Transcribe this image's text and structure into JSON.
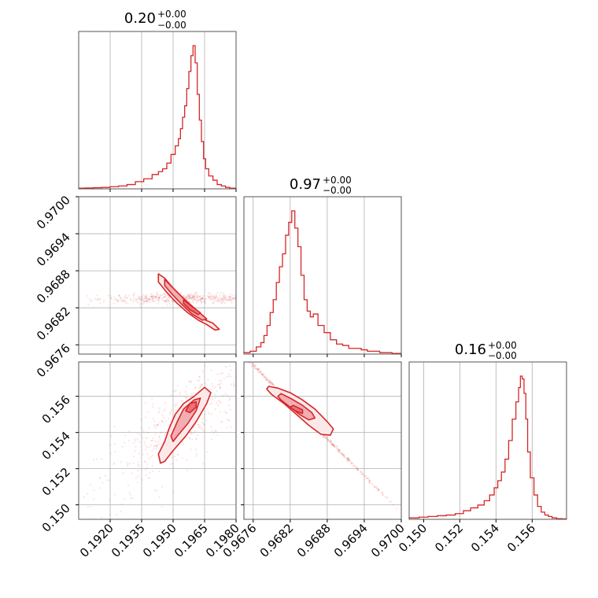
{
  "chart_data": {
    "type": "corner",
    "color": "#d62728",
    "grid": true,
    "params": [
      {
        "title_value": "0.20",
        "title_plus": "+0.00",
        "title_minus": "−0.00",
        "range": [
          0.1905,
          0.198
        ],
        "ticks": [
          0.192,
          0.1935,
          0.195,
          0.1965,
          0.198
        ],
        "tick_labels": [
          "0.1920",
          "0.1935",
          "0.1950",
          "0.1965",
          "0.1980"
        ]
      },
      {
        "title_value": "0.97",
        "title_plus": "+0.00",
        "title_minus": "−0.00",
        "range": [
          0.96745,
          0.97
        ],
        "ticks": [
          0.9676,
          0.9682,
          0.9688,
          0.9694,
          0.97
        ],
        "tick_labels": [
          "0.9676",
          "0.9682",
          "0.9688",
          "0.9694",
          "0.9700"
        ]
      },
      {
        "title_value": "0.16",
        "title_plus": "+0.00",
        "title_minus": "−0.00",
        "range": [
          0.1492,
          0.1579
        ],
        "ticks": [
          0.15,
          0.152,
          0.154,
          0.156
        ],
        "tick_labels": [
          "0.150",
          "0.152",
          "0.154",
          "0.156"
        ]
      }
    ],
    "histograms": [
      {
        "param": 0,
        "bin_centers": [
          0.1906,
          0.191,
          0.1914,
          0.1918,
          0.1922,
          0.1926,
          0.193,
          0.1934,
          0.1938,
          0.1942,
          0.1944,
          0.1946,
          0.1948,
          0.195,
          0.1952,
          0.1953,
          0.1954,
          0.1955,
          0.1956,
          0.1957,
          0.1958,
          0.1959,
          0.196,
          0.1961,
          0.1962,
          0.1963,
          0.1964,
          0.1965,
          0.1966,
          0.1968,
          0.197,
          0.1972,
          0.1974,
          0.1976,
          0.1978
        ],
        "counts": [
          0.005,
          0.006,
          0.008,
          0.01,
          0.015,
          0.02,
          0.03,
          0.05,
          0.07,
          0.1,
          0.12,
          0.14,
          0.18,
          0.24,
          0.3,
          0.35,
          0.42,
          0.5,
          0.58,
          0.7,
          0.82,
          0.93,
          1.0,
          0.88,
          0.66,
          0.48,
          0.33,
          0.21,
          0.14,
          0.09,
          0.06,
          0.03,
          0.02,
          0.01,
          0.005
        ]
      },
      {
        "param": 1,
        "bin_centers": [
          0.9675,
          0.9676,
          0.9677,
          0.96775,
          0.9678,
          0.96785,
          0.9679,
          0.96795,
          0.968,
          0.96805,
          0.9681,
          0.96815,
          0.9682,
          0.96825,
          0.9683,
          0.96835,
          0.9684,
          0.96845,
          0.9685,
          0.96855,
          0.9686,
          0.9687,
          0.9688,
          0.9689,
          0.969,
          0.9691,
          0.9692,
          0.9693,
          0.9694,
          0.9695,
          0.9696,
          0.9697,
          0.9698,
          0.9699
        ],
        "counts": [
          0.01,
          0.02,
          0.05,
          0.08,
          0.13,
          0.2,
          0.29,
          0.38,
          0.5,
          0.61,
          0.7,
          0.83,
          0.92,
          1.0,
          0.88,
          0.75,
          0.55,
          0.38,
          0.3,
          0.26,
          0.28,
          0.2,
          0.15,
          0.1,
          0.07,
          0.06,
          0.04,
          0.04,
          0.03,
          0.02,
          0.02,
          0.01,
          0.01,
          0.005
        ]
      },
      {
        "param": 2,
        "bin_centers": [
          0.1495,
          0.15,
          0.1505,
          0.151,
          0.1515,
          0.152,
          0.1524,
          0.1528,
          0.1532,
          0.1535,
          0.1538,
          0.154,
          0.1542,
          0.1544,
          0.1546,
          0.1548,
          0.155,
          0.1552,
          0.1553,
          0.1554,
          0.1555,
          0.1556,
          0.1557,
          0.1558,
          0.156,
          0.1562,
          0.1564,
          0.1566,
          0.1568,
          0.157,
          0.1572,
          0.1575,
          0.1578
        ],
        "counts": [
          0.01,
          0.015,
          0.02,
          0.025,
          0.03,
          0.04,
          0.06,
          0.08,
          0.1,
          0.13,
          0.17,
          0.22,
          0.27,
          0.33,
          0.42,
          0.55,
          0.7,
          0.82,
          0.92,
          1.0,
          0.98,
          0.88,
          0.7,
          0.47,
          0.29,
          0.17,
          0.09,
          0.05,
          0.03,
          0.02,
          0.01,
          0.005,
          0.003
        ]
      }
    ],
    "pairs": [
      {
        "x_param": 0,
        "y_param": 1,
        "levels": [
          {
            "fill": "#fbe9ea",
            "points": [
              [
                0.1943,
                0.96875
              ],
              [
                0.1946,
                0.96868
              ],
              [
                0.195,
                0.96852
              ],
              [
                0.1955,
                0.96835
              ],
              [
                0.196,
                0.96818
              ],
              [
                0.1964,
                0.96802
              ],
              [
                0.1969,
                0.96795
              ],
              [
                0.1972,
                0.96785
              ],
              [
                0.197,
                0.96784
              ],
              [
                0.1966,
                0.96793
              ],
              [
                0.1962,
                0.968
              ],
              [
                0.1957,
                0.96812
              ],
              [
                0.1952,
                0.96827
              ],
              [
                0.1947,
                0.96845
              ],
              [
                0.1943,
                0.96862
              ]
            ]
          },
          {
            "fill": "#f2aeb3",
            "points": [
              [
                0.1946,
                0.96866
              ],
              [
                0.195,
                0.96852
              ],
              [
                0.1955,
                0.96835
              ],
              [
                0.196,
                0.9682
              ],
              [
                0.1964,
                0.96808
              ],
              [
                0.1966,
                0.96802
              ],
              [
                0.1964,
                0.968
              ],
              [
                0.1959,
                0.9681
              ],
              [
                0.1954,
                0.96826
              ],
              [
                0.1949,
                0.96844
              ],
              [
                0.1946,
                0.96856
              ]
            ]
          },
          {
            "fill": "#e8717a",
            "points": [
              [
                0.1955,
                0.96833
              ],
              [
                0.1959,
                0.96822
              ],
              [
                0.1963,
                0.96812
              ],
              [
                0.1962,
                0.96809
              ],
              [
                0.1958,
                0.96817
              ],
              [
                0.1955,
                0.96827
              ]
            ]
          }
        ],
        "scatter_center": [
          0.1955,
          0.96835
        ],
        "scatter_direction": [
          1.0,
          -0.00027
        ],
        "scatter_spread": [
          0.002,
          4e-05
        ]
      },
      {
        "x_param": 0,
        "y_param": 2,
        "levels": [
          {
            "fill": "#fbe9ea",
            "points": [
              [
                0.1943,
                0.1528
              ],
              [
                0.1946,
                0.1535
              ],
              [
                0.1948,
                0.1542
              ],
              [
                0.1951,
                0.155
              ],
              [
                0.1955,
                0.1556
              ],
              [
                0.196,
                0.156
              ],
              [
                0.1965,
                0.1565
              ],
              [
                0.1968,
                0.1562
              ],
              [
                0.1966,
                0.1556
              ],
              [
                0.1961,
                0.1546
              ],
              [
                0.1956,
                0.1538
              ],
              [
                0.195,
                0.153
              ],
              [
                0.1946,
                0.1524
              ],
              [
                0.1944,
                0.1523
              ]
            ]
          },
          {
            "fill": "#f2aeb3",
            "points": [
              [
                0.1949,
                0.1538
              ],
              [
                0.1952,
                0.1546
              ],
              [
                0.1955,
                0.1553
              ],
              [
                0.196,
                0.1558
              ],
              [
                0.1963,
                0.1559
              ],
              [
                0.1961,
                0.1552
              ],
              [
                0.1957,
                0.1545
              ],
              [
                0.1952,
                0.1538
              ],
              [
                0.195,
                0.1535
              ]
            ]
          },
          {
            "fill": "#e8717a",
            "points": [
              [
                0.1956,
                0.1552
              ],
              [
                0.1958,
                0.1556
              ],
              [
                0.1961,
                0.1557
              ],
              [
                0.1961,
                0.1554
              ],
              [
                0.1958,
                0.1551
              ]
            ]
          }
        ],
        "scatter_center": [
          0.1954,
          0.1545
        ],
        "scatter_direction": [
          1.0,
          0.9
        ],
        "scatter_spread": [
          0.002,
          0.0012
        ]
      },
      {
        "x_param": 1,
        "y_param": 2,
        "levels": [
          {
            "fill": "#fbe9ea",
            "points": [
              [
                0.96785,
                0.15655
              ],
              [
                0.968,
                0.15645
              ],
              [
                0.9682,
                0.1562
              ],
              [
                0.9684,
                0.1558
              ],
              [
                0.9686,
                0.1553
              ],
              [
                0.9688,
                0.1546
              ],
              [
                0.9689,
                0.1542
              ],
              [
                0.96885,
                0.15385
              ],
              [
                0.9687,
                0.1539
              ],
              [
                0.9685,
                0.1544
              ],
              [
                0.9683,
                0.155
              ],
              [
                0.9681,
                0.1556
              ],
              [
                0.9679,
                0.1561
              ],
              [
                0.96782,
                0.1564
              ]
            ]
          },
          {
            "fill": "#f2aeb3",
            "points": [
              [
                0.96805,
                0.15615
              ],
              [
                0.9682,
                0.1559
              ],
              [
                0.9684,
                0.1555
              ],
              [
                0.96855,
                0.1551
              ],
              [
                0.9686,
                0.1548
              ],
              [
                0.9685,
                0.1547
              ],
              [
                0.96835,
                0.155
              ],
              [
                0.9682,
                0.1554
              ],
              [
                0.96805,
                0.1558
              ],
              [
                0.968,
                0.156
              ]
            ]
          },
          {
            "fill": "#e8717a",
            "points": [
              [
                0.96825,
                0.1555
              ],
              [
                0.9684,
                0.15525
              ],
              [
                0.9684,
                0.15505
              ],
              [
                0.96828,
                0.1552
              ],
              [
                0.9682,
                0.1554
              ]
            ]
          }
        ],
        "scatter_center": [
          0.9684,
          0.155
        ],
        "scatter_direction": [
          0.0001,
          -0.00034
        ],
        "scatter_spread": [
          0.00065,
          5e-05
        ]
      }
    ]
  }
}
